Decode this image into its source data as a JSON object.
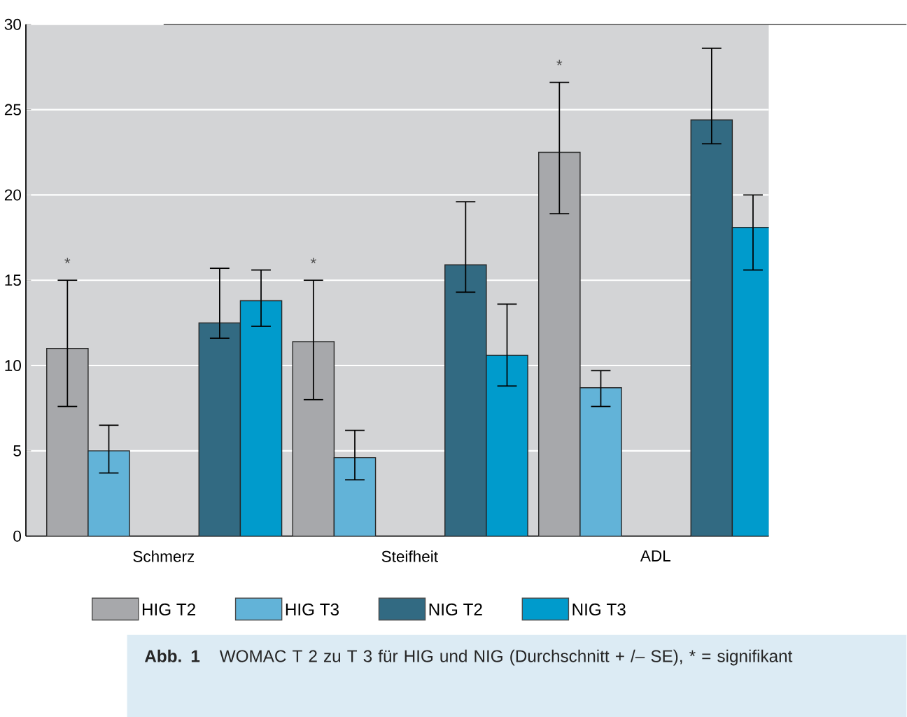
{
  "chart_data": {
    "type": "bar",
    "title": "Abb. 1",
    "categories": [
      "Schmerz",
      "Steifheit",
      "ADL"
    ],
    "series": [
      {
        "name": "HIG T2",
        "color": "#a7a8ab",
        "values": [
          11.0,
          11.4,
          22.5
        ],
        "errors": [
          [
            7.6,
            15.0
          ],
          [
            8.0,
            15.0
          ],
          [
            18.9,
            26.6
          ]
        ]
      },
      {
        "name": "HIG T3",
        "color": "#62b3d8",
        "values": [
          5.0,
          4.6,
          8.7
        ],
        "errors": [
          [
            3.7,
            6.5
          ],
          [
            3.3,
            6.2
          ],
          [
            7.6,
            9.7
          ]
        ]
      },
      {
        "name": "NIG T2",
        "color": "#326a82",
        "values": [
          12.5,
          15.9,
          24.4
        ],
        "errors": [
          [
            11.6,
            15.7
          ],
          [
            14.3,
            19.6
          ],
          [
            23.0,
            28.6
          ]
        ]
      },
      {
        "name": "NIG T3",
        "color": "#009bcc",
        "values": [
          13.8,
          10.6,
          18.1
        ],
        "errors": [
          [
            12.3,
            15.6
          ],
          [
            8.8,
            13.6
          ],
          [
            15.6,
            20.0
          ]
        ]
      }
    ],
    "ylim": [
      0,
      30
    ],
    "yticks": [
      0,
      5,
      10,
      15,
      20,
      25,
      30
    ],
    "grid": "y",
    "legend": "bottom",
    "annotations": [
      "*",
      "*",
      "*",
      "WOMAC T 2 zu T 3 für HIG und NIG (Durchschnitt + /– SE), * = signifikant"
    ]
  }
}
